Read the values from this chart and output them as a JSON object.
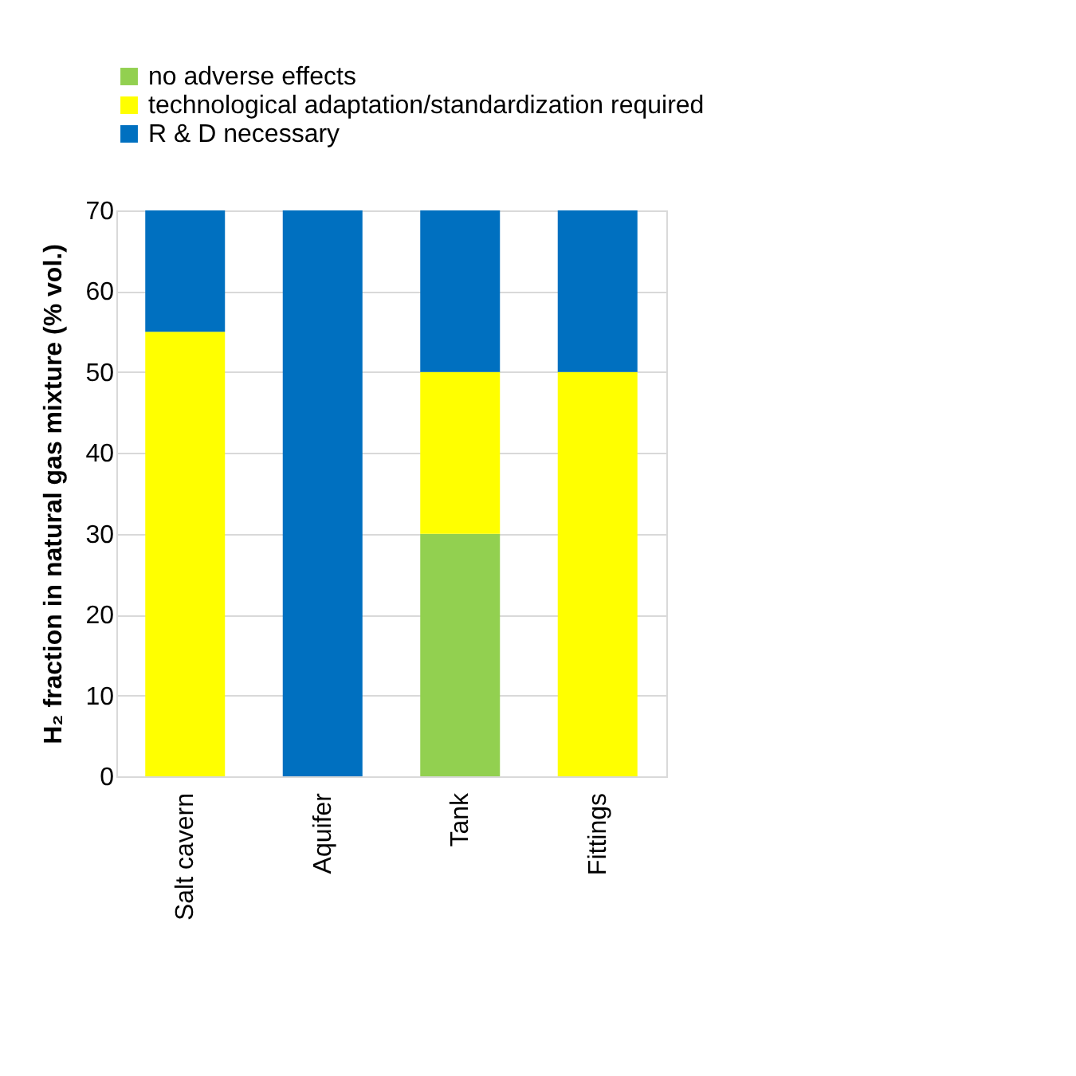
{
  "chart_data": {
    "type": "bar",
    "stacked": true,
    "ylabel": "H₂ fraction in natural gas mixture (% vol.)",
    "categories": [
      "Salt cavern",
      "Aquifer",
      "Tank",
      "Fittings"
    ],
    "series": [
      {
        "name": "no adverse effects",
        "color": "#92d050",
        "values": [
          0,
          0,
          30,
          0
        ]
      },
      {
        "name": "technological adaptation/standardization required",
        "color": "#ffff00",
        "values": [
          55,
          0,
          20,
          50
        ]
      },
      {
        "name": "R & D necessary",
        "color": "#0070c0",
        "values": [
          15,
          70,
          20,
          20
        ]
      }
    ],
    "ylim": [
      0,
      70
    ],
    "yticks": [
      0,
      10,
      20,
      30,
      40,
      50,
      60,
      70
    ],
    "grid": "y",
    "legend": "top left"
  }
}
